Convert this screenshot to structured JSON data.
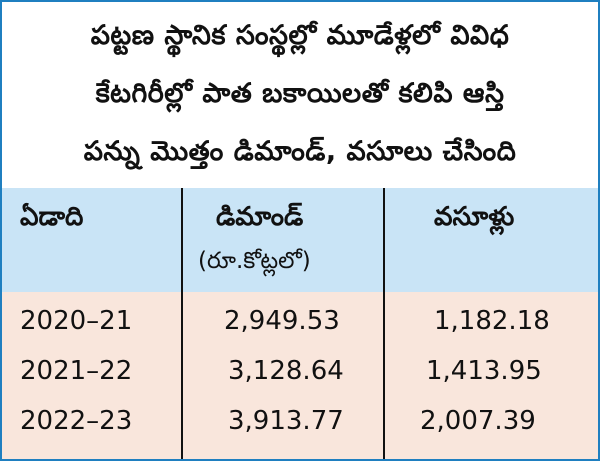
{
  "chart_data": {
    "type": "table",
    "title_lines": [
      "పట్టణ స్థానిక సంస్థల్లో మూడేళ్లలో వివిధ",
      "కేటగిరీల్లో పాత బకాయిలతో కలిపి ఆస్తి",
      "పన్ను మొత్తం డిమాండ్, వసూలు చేసింది"
    ],
    "columns": [
      {
        "label": "ఏడాది",
        "sub": ""
      },
      {
        "label": "డిమాండ్",
        "sub": "(రూ.కోట్లలో)"
      },
      {
        "label": "వసూళ్లు",
        "sub": ""
      }
    ],
    "rows": [
      {
        "year": "2020–21",
        "demand": "2,949.53",
        "collection": "1,182.18"
      },
      {
        "year": "2021–22",
        "demand": "3,128.64",
        "collection": "1,413.95"
      },
      {
        "year": "2022–23",
        "demand": "3,913.77",
        "collection": "2,007.39"
      }
    ],
    "colors": {
      "border": "#1f7fc0",
      "header_bg": "#c9e4f6",
      "body_bg": "#f9e6dc"
    }
  }
}
